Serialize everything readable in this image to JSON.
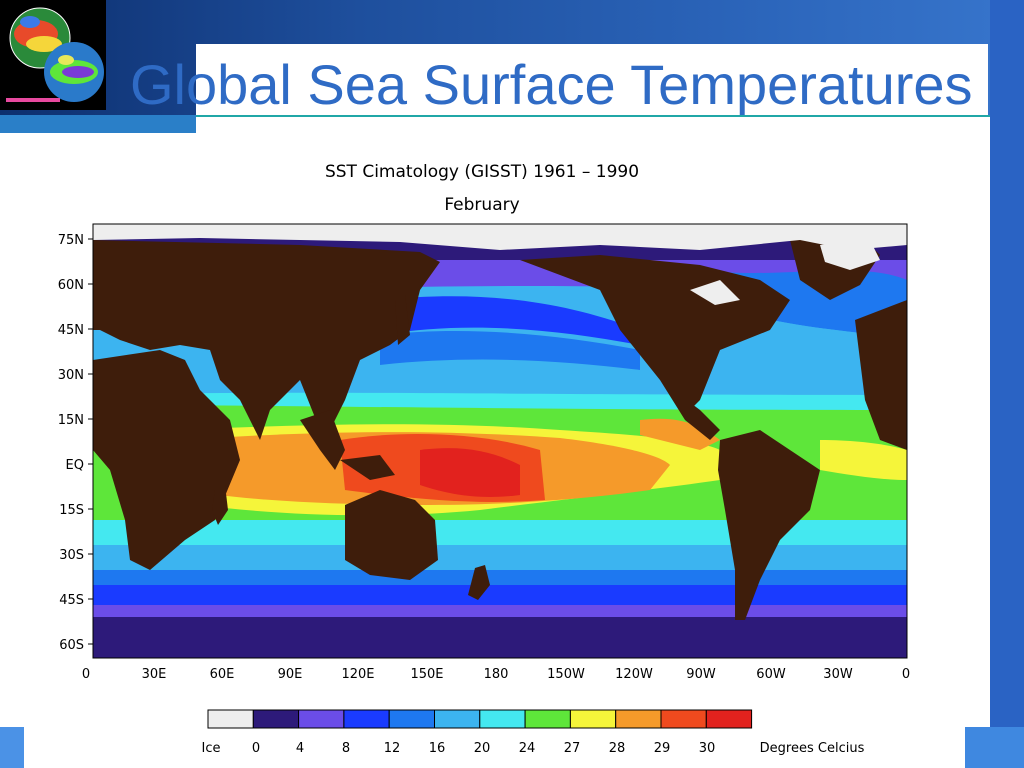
{
  "slide": {
    "title": "Global Sea Surface Temperatures"
  },
  "figure": {
    "title": "SST Cimatology (GISST) 1961 – 1990",
    "subtitle": "February",
    "lat_labels": [
      "75N",
      "60N",
      "45N",
      "30N",
      "15N",
      "EQ",
      "15S",
      "30S",
      "45S",
      "60S"
    ],
    "lon_labels": [
      "0",
      "30E",
      "60E",
      "90E",
      "120E",
      "150E",
      "180",
      "150W",
      "120W",
      "90W",
      "60W",
      "30W",
      "0"
    ]
  },
  "legend": {
    "labels": [
      "Ice",
      "0",
      "4",
      "8",
      "12",
      "16",
      "20",
      "24",
      "27",
      "28",
      "29",
      "30"
    ],
    "unit": "Degrees Celcius",
    "colors": [
      "#eeeeee",
      "#2d1a7a",
      "#6b4de8",
      "#1a3bff",
      "#1e78f0",
      "#3cb4f0",
      "#44e8f0",
      "#5ee63a",
      "#f5f53a",
      "#f59a2a",
      "#ef4a1e",
      "#e2221e"
    ]
  },
  "map_colors": {
    "land": "#3e1d0b",
    "ice": "#eeeeee"
  }
}
